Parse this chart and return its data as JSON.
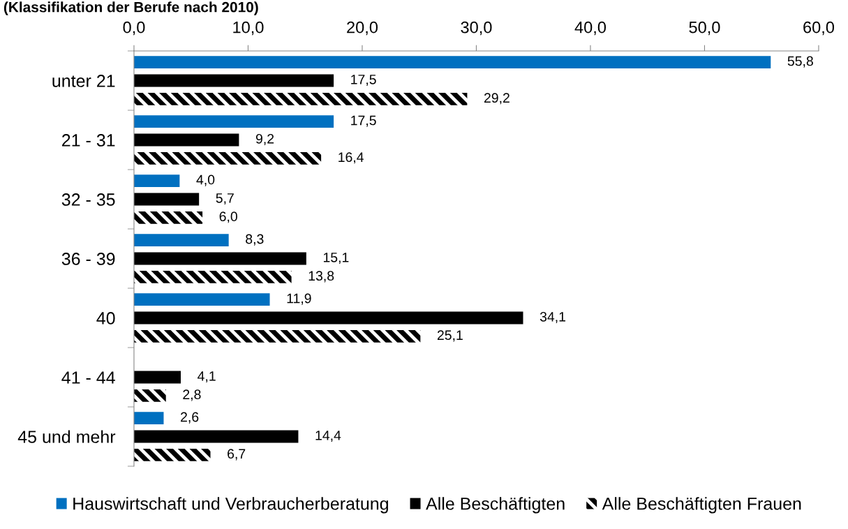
{
  "chart_data": {
    "type": "bar",
    "orientation": "horizontal",
    "title": "(Klassifikation der Berufe nach 2010)",
    "categories": [
      "unter 21",
      "21 - 31",
      "32 - 35",
      "36 - 39",
      "40",
      "41 - 44",
      "45 und mehr"
    ],
    "series": [
      {
        "name": "Hauswirtschaft und Verbraucherberatung",
        "color": "#0070c0",
        "values": [
          55.8,
          17.5,
          4.0,
          8.3,
          11.9,
          null,
          2.6
        ],
        "value_labels": [
          "55,8",
          "17,5",
          "4,0",
          "8,3",
          "11,9",
          null,
          "2,6"
        ]
      },
      {
        "name": "Alle Beschäftigten",
        "color": "#000000",
        "values": [
          17.5,
          9.2,
          5.7,
          15.1,
          34.1,
          4.1,
          14.4
        ],
        "value_labels": [
          "17,5",
          "9,2",
          "5,7",
          "15,1",
          "34,1",
          "4,1",
          "14,4"
        ]
      },
      {
        "name": "Alle Beschäftigten Frauen",
        "color": "#000000",
        "values": [
          29.2,
          16.4,
          6.0,
          13.8,
          25.1,
          2.8,
          6.7
        ],
        "value_labels": [
          "29,2",
          "16,4",
          "6,0",
          "13,8",
          "25,1",
          "2,8",
          "6,7"
        ]
      }
    ],
    "xlim": [
      0,
      60
    ],
    "xticks": [
      {
        "value": 0,
        "label": "0,0"
      },
      {
        "value": 10,
        "label": "10,0"
      },
      {
        "value": 20,
        "label": "20,0"
      },
      {
        "value": 30,
        "label": "30,0"
      },
      {
        "value": 40,
        "label": "40,0"
      },
      {
        "value": 50,
        "label": "50,0"
      },
      {
        "value": 60,
        "label": "60,0"
      }
    ],
    "grid": false,
    "legend": "bottom"
  }
}
